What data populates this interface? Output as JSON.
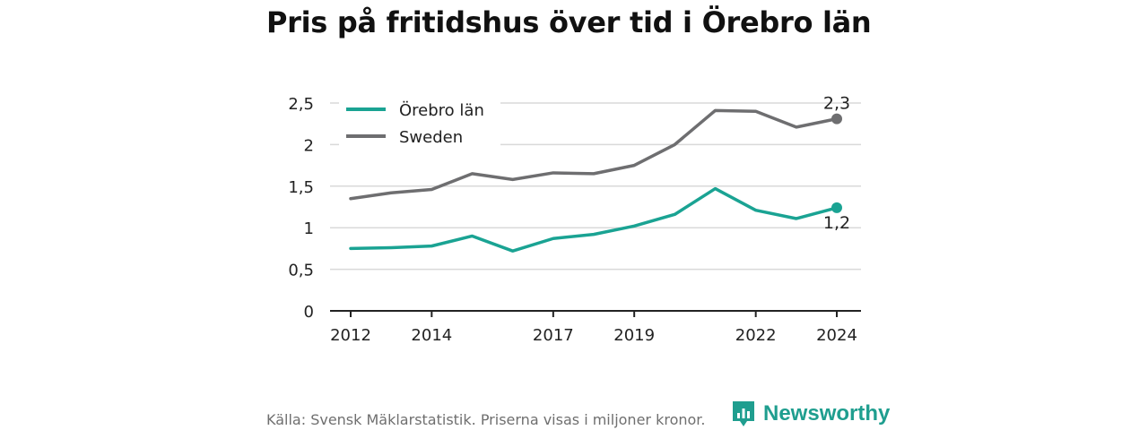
{
  "title": "Pris på fritidshus över tid i Örebro län",
  "footer": {
    "source": "Källa: Svensk Mäklarstatistik. Priserna visas i miljoner kronor.",
    "brand": "Newsworthy"
  },
  "colors": {
    "orebro": "#1aa393",
    "sweden": "#6e6e70",
    "grid": "#d9d9d9",
    "axis": "#222222",
    "brand": "#1f9e8f"
  },
  "chart_data": {
    "type": "line",
    "x": [
      2012,
      2013,
      2014,
      2015,
      2016,
      2017,
      2018,
      2019,
      2020,
      2021,
      2022,
      2023,
      2024
    ],
    "x_ticks": [
      2012,
      2014,
      2017,
      2019,
      2022,
      2024
    ],
    "y_ticks": [
      0,
      0.5,
      1,
      1.5,
      2,
      2.5
    ],
    "y_tick_labels": [
      "0",
      "0,5",
      "1",
      "1,5",
      "2",
      "2,5"
    ],
    "ylim": [
      0,
      2.5
    ],
    "grid": "horizontal",
    "legend": "top-left",
    "series": [
      {
        "name": "Örebro län",
        "values": [
          0.75,
          0.76,
          0.78,
          0.9,
          0.72,
          0.87,
          0.92,
          1.02,
          1.16,
          1.47,
          1.21,
          1.11,
          1.24
        ],
        "end_label": "1,2"
      },
      {
        "name": "Sweden",
        "values": [
          1.35,
          1.42,
          1.46,
          1.65,
          1.58,
          1.66,
          1.65,
          1.75,
          2.0,
          2.41,
          2.4,
          2.21,
          2.31
        ],
        "end_label": "2,3"
      }
    ]
  }
}
